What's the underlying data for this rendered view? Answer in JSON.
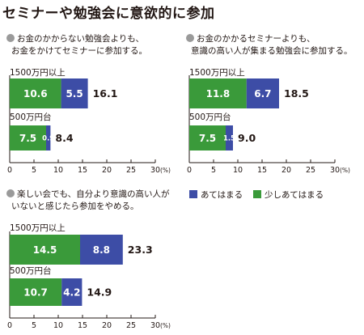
{
  "title": "セミナーや勉強会に意欲的に参加",
  "legend": [
    {
      "label": "あてはまる",
      "color": "#3d4da6"
    },
    {
      "label": "少しあてはまる",
      "color": "#3a9a3a"
    }
  ],
  "colors": {
    "strong": "#3d4da6",
    "some": "#3a9a3a"
  },
  "chart_data": [
    {
      "type": "bar",
      "stacked": true,
      "orientation": "horizontal",
      "question_lines": [
        "お金のかからない勉強会よりも、",
        "お金をかけてセミナーに参加する。"
      ],
      "categories": [
        "1500万円以上",
        "500万円台"
      ],
      "series": [
        {
          "name": "少しあてはまる",
          "values": [
            10.6,
            7.5
          ]
        },
        {
          "name": "あてはまる",
          "values": [
            5.5,
            0.9
          ]
        }
      ],
      "totals": [
        16.1,
        8.4
      ],
      "xlim": [
        0,
        30
      ],
      "xticks": [
        0,
        5,
        10,
        15,
        20,
        25,
        30
      ],
      "xunit": "(%)"
    },
    {
      "type": "bar",
      "stacked": true,
      "orientation": "horizontal",
      "question_lines": [
        "お金のかかるセミナーよりも、",
        "意識の高い人が集まる勉強会に参加する。"
      ],
      "categories": [
        "1500万円以上",
        "500万円台"
      ],
      "series": [
        {
          "name": "少しあてはまる",
          "values": [
            11.8,
            7.5
          ]
        },
        {
          "name": "あてはまる",
          "values": [
            6.7,
            1.5
          ]
        }
      ],
      "totals": [
        18.5,
        9.0
      ],
      "xlim": [
        0,
        30
      ],
      "xticks": [
        0,
        5,
        10,
        15,
        20,
        25,
        30
      ],
      "xunit": "(%)"
    },
    {
      "type": "bar",
      "stacked": true,
      "orientation": "horizontal",
      "question_lines": [
        "楽しい会でも、自分より意識の高い人が",
        "いないと感じたら参加をやめる。"
      ],
      "categories": [
        "1500万円以上",
        "500万円台"
      ],
      "series": [
        {
          "name": "少しあてはまる",
          "values": [
            14.5,
            10.7
          ]
        },
        {
          "name": "あてはまる",
          "values": [
            8.8,
            4.2
          ]
        }
      ],
      "totals": [
        23.3,
        14.9
      ],
      "xlim": [
        0,
        30
      ],
      "xticks": [
        0,
        5,
        10,
        15,
        20,
        25,
        30
      ],
      "xunit": "(%)"
    }
  ]
}
